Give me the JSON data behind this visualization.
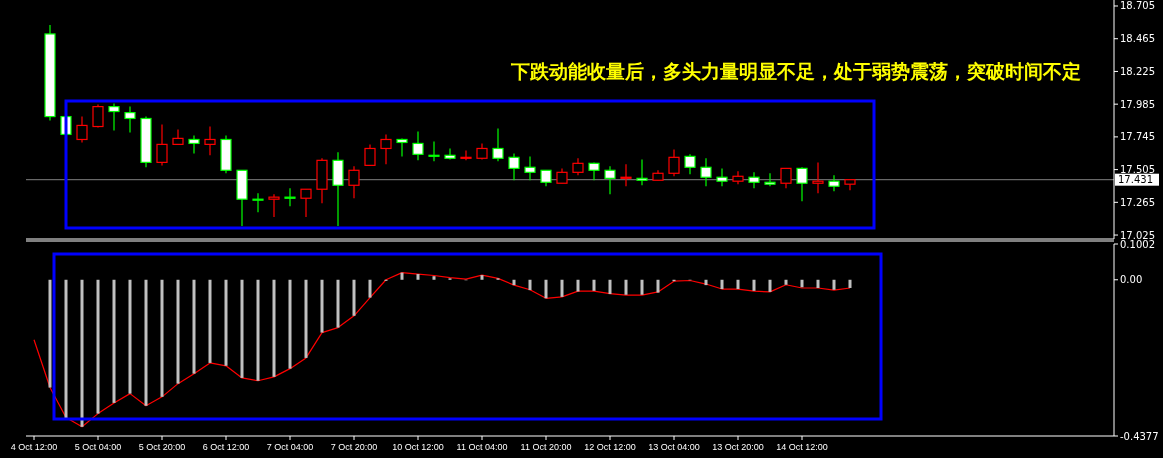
{
  "chart_data": [
    {
      "type": "candlestick",
      "categories": [
        null,
        null,
        null,
        null,
        null,
        null,
        null,
        null,
        null,
        null,
        null,
        null,
        null,
        null,
        null,
        null,
        null,
        null,
        null,
        null,
        null,
        null,
        null,
        null,
        null,
        null,
        null,
        null,
        null,
        null,
        null,
        null,
        null,
        null,
        null,
        null,
        null,
        null,
        null,
        null,
        null,
        null,
        null,
        null,
        null,
        null,
        null,
        null,
        null,
        null,
        null,
        null,
        null,
        null,
        null,
        null,
        null,
        null,
        null,
        null,
        null,
        null,
        null,
        null,
        null,
        null,
        null,
        null
      ],
      "ohlc": [
        null,
        [
          18.5,
          18.566,
          17.865,
          17.894
        ],
        [
          17.894,
          17.894,
          17.763,
          17.763
        ],
        [
          17.726,
          17.894,
          17.704,
          17.829
        ],
        [
          17.821,
          17.982,
          17.814,
          17.967
        ],
        [
          17.967,
          17.989,
          17.792,
          17.931
        ],
        [
          17.923,
          17.967,
          17.777,
          17.88
        ],
        [
          17.88,
          17.894,
          17.522,
          17.558
        ],
        [
          17.558,
          17.836,
          17.536,
          17.69
        ],
        [
          17.69,
          17.799,
          17.69,
          17.734
        ],
        [
          17.726,
          17.756,
          17.624,
          17.697
        ],
        [
          17.69,
          17.821,
          17.61,
          17.726
        ],
        [
          17.726,
          17.756,
          17.478,
          17.5
        ],
        [
          17.5,
          17.5,
          17.091,
          17.288
        ],
        [
          17.288,
          17.332,
          17.193,
          17.288
        ],
        [
          17.288,
          17.324,
          17.157,
          17.303
        ],
        [
          17.303,
          17.368,
          17.237,
          17.295
        ],
        [
          17.295,
          17.361,
          17.157,
          17.361
        ],
        [
          17.361,
          17.588,
          17.259,
          17.573
        ],
        [
          17.573,
          17.632,
          17.091,
          17.39
        ],
        [
          17.39,
          17.529,
          17.295,
          17.5
        ],
        [
          17.536,
          17.69,
          17.536,
          17.66
        ],
        [
          17.66,
          17.763,
          17.544,
          17.726
        ],
        [
          17.726,
          17.734,
          17.602,
          17.704
        ],
        [
          17.697,
          17.785,
          17.573,
          17.617
        ],
        [
          17.61,
          17.712,
          17.566,
          17.61
        ],
        [
          17.61,
          17.66,
          17.58,
          17.588
        ],
        [
          17.588,
          17.646,
          17.573,
          17.595
        ],
        [
          17.588,
          17.697,
          17.58,
          17.66
        ],
        [
          17.66,
          17.807,
          17.566,
          17.588
        ],
        [
          17.595,
          17.624,
          17.427,
          17.514
        ],
        [
          17.522,
          17.602,
          17.427,
          17.485
        ],
        [
          17.5,
          17.5,
          17.383,
          17.412
        ],
        [
          17.405,
          17.514,
          17.405,
          17.485
        ],
        [
          17.485,
          17.588,
          17.463,
          17.551
        ],
        [
          17.551,
          17.558,
          17.427,
          17.5
        ],
        [
          17.5,
          17.529,
          17.324,
          17.441
        ],
        [
          17.441,
          17.544,
          17.383,
          17.449
        ],
        [
          17.441,
          17.58,
          17.39,
          17.427
        ],
        [
          17.427,
          17.5,
          17.427,
          17.478
        ],
        [
          17.478,
          17.653,
          17.456,
          17.595
        ],
        [
          17.602,
          17.617,
          17.471,
          17.522
        ],
        [
          17.522,
          17.588,
          17.383,
          17.449
        ],
        [
          17.449,
          17.514,
          17.383,
          17.42
        ],
        [
          17.42,
          17.493,
          17.398,
          17.456
        ],
        [
          17.449,
          17.485,
          17.368,
          17.412
        ],
        [
          17.412,
          17.478,
          17.383,
          17.398
        ],
        [
          17.405,
          17.514,
          17.368,
          17.514
        ],
        [
          17.514,
          17.522,
          17.273,
          17.405
        ],
        [
          17.405,
          17.558,
          17.332,
          17.42
        ],
        [
          17.42,
          17.463,
          17.346,
          17.383
        ],
        [
          17.398,
          17.434,
          17.354,
          17.431
        ],
        null,
        null,
        null,
        null,
        null,
        null,
        null,
        null,
        null,
        null,
        null,
        null,
        null,
        null,
        null,
        null
      ],
      "colors": [
        null,
        "#00ff00",
        "#00ff00",
        "#ff0000",
        "#ff0000",
        "#00ff00",
        "#00ff00",
        "#00ff00",
        "#ff0000",
        "#ff0000",
        "#00ff00",
        "#ff0000",
        "#00ff00",
        "#00ff00",
        "#00ff00",
        "#ff0000",
        "#00ff00",
        "#ff0000",
        "#ff0000",
        "#00ff00",
        "#ff0000",
        "#ff0000",
        "#ff0000",
        "#00ff00",
        "#00ff00",
        "#00ff00",
        "#00ff00",
        "#ff0000",
        "#ff0000",
        "#00ff00",
        "#00ff00",
        "#00ff00",
        "#00ff00",
        "#ff0000",
        "#ff0000",
        "#00ff00",
        "#00ff00",
        "#ff0000",
        "#00ff00",
        "#ff0000",
        "#ff0000",
        "#00ff00",
        "#00ff00",
        "#00ff00",
        "#ff0000",
        "#00ff00",
        "#00ff00",
        "#ff0000",
        "#00ff00",
        "#ff0000",
        "#00ff00",
        "#ff0000",
        null,
        null,
        null,
        null,
        null,
        null,
        null,
        null,
        null,
        null,
        null,
        null,
        null,
        null,
        null,
        null
      ],
      "ylim": [
        16.996,
        18.749
      ],
      "yticks": [
        18.705,
        18.465,
        18.225,
        17.985,
        17.745,
        17.505,
        17.265,
        17.025
      ],
      "tick_labels": "y",
      "ref_lines": [
        {
          "axis": "y",
          "value": 17.431,
          "label": "17.431",
          "color": "#808080"
        }
      ],
      "annotations": [
        "下跌动能收量后，多头力量明显不足，处于弱势震荡，突破时间不定"
      ]
    },
    {
      "type": "bar",
      "categories": [
        "4 Oct 12:00",
        null,
        null,
        null,
        "5 Oct 04:00",
        null,
        null,
        null,
        "5 Oct 20:00",
        null,
        null,
        null,
        "6 Oct 12:00",
        null,
        null,
        null,
        "7 Oct 04:00",
        null,
        null,
        null,
        "7 Oct 20:00",
        null,
        null,
        null,
        "10 Oct 12:00",
        null,
        null,
        null,
        "11 Oct 04:00",
        null,
        null,
        null,
        "11 Oct 20:00",
        null,
        null,
        null,
        "12 Oct 12:00",
        null,
        null,
        null,
        "13 Oct 04:00",
        null,
        null,
        null,
        "13 Oct 20:00",
        null,
        null,
        null,
        "14 Oct 12:00",
        null,
        null,
        null,
        null,
        null,
        null,
        null,
        null,
        null,
        null,
        null,
        null,
        null,
        null,
        null,
        null,
        null,
        null,
        null
      ],
      "series": [
        {
          "type": "bar",
          "color": "#c0c0c0",
          "values": [
            null,
            -0.302,
            -0.389,
            -0.412,
            -0.375,
            -0.345,
            -0.319,
            -0.353,
            -0.328,
            -0.291,
            -0.263,
            -0.233,
            -0.241,
            -0.275,
            -0.283,
            -0.272,
            -0.249,
            -0.219,
            -0.148,
            -0.134,
            -0.101,
            -0.05,
            -0.003,
            0.02,
            0.016,
            0.01,
            0.004,
            0.0,
            0.013,
            0.004,
            -0.015,
            -0.029,
            -0.052,
            -0.048,
            -0.033,
            -0.031,
            -0.04,
            -0.042,
            -0.042,
            -0.036,
            -0.004,
            0.0,
            -0.015,
            -0.026,
            -0.026,
            -0.031,
            -0.034,
            -0.014,
            -0.021,
            -0.023,
            -0.028,
            -0.023,
            null,
            null,
            null,
            null,
            null,
            null,
            null,
            null,
            null,
            null,
            null,
            null,
            null,
            null,
            null,
            null
          ]
        },
        {
          "type": "line",
          "color": "#ff0000",
          "values": [
            -0.168,
            -0.302,
            -0.386,
            -0.412,
            -0.375,
            -0.345,
            -0.319,
            -0.353,
            -0.328,
            -0.291,
            -0.263,
            -0.233,
            -0.241,
            -0.275,
            -0.283,
            -0.272,
            -0.249,
            -0.219,
            -0.148,
            -0.134,
            -0.101,
            -0.05,
            0.0,
            0.02,
            0.016,
            0.012,
            0.006,
            0.002,
            0.013,
            0.004,
            -0.015,
            -0.028,
            -0.052,
            -0.048,
            -0.032,
            -0.032,
            -0.039,
            -0.043,
            -0.043,
            -0.034,
            -0.004,
            -0.002,
            -0.012,
            -0.026,
            -0.026,
            -0.032,
            -0.034,
            -0.014,
            -0.023,
            -0.023,
            -0.029,
            -0.023,
            null,
            null,
            null,
            null,
            null,
            null,
            null,
            null,
            null,
            null,
            null,
            null,
            null,
            null,
            null,
            null
          ]
        }
      ],
      "ylim": [
        -0.4377,
        0.1002
      ],
      "yticks": [
        0.1002,
        {
          "value": 0,
          "label": "0.00"
        },
        -0.4377
      ]
    }
  ]
}
